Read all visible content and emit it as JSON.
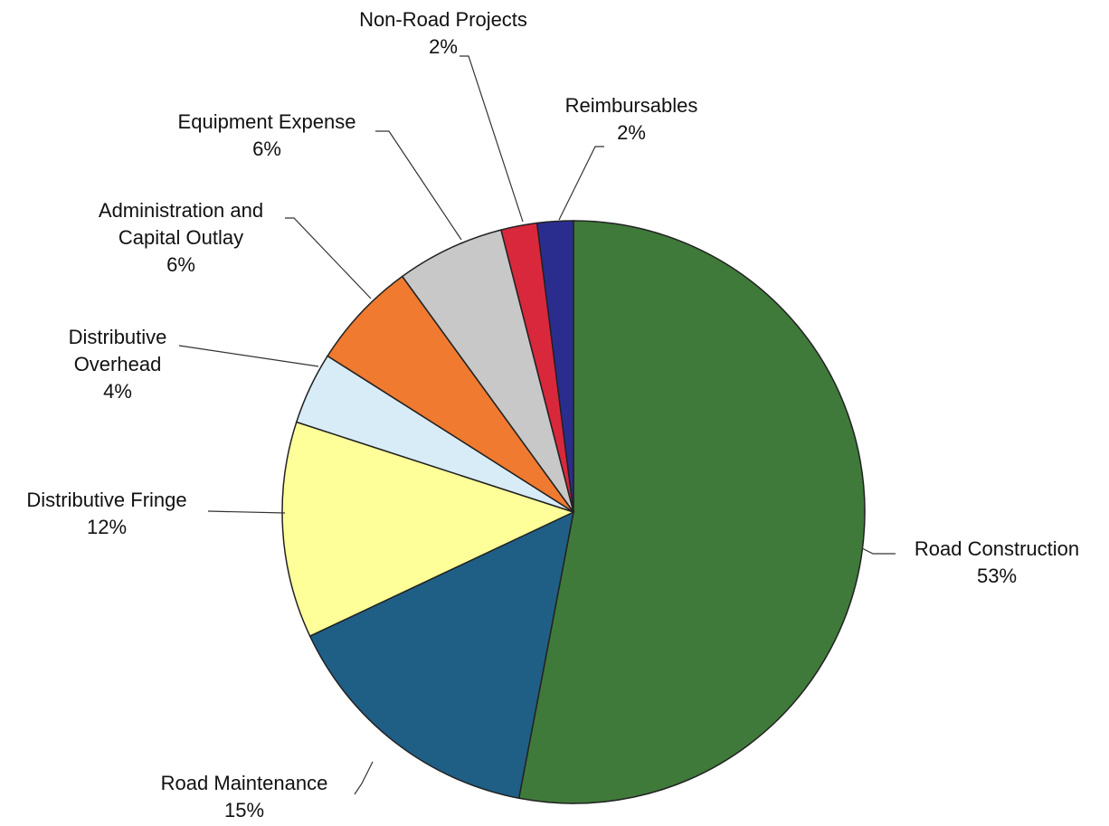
{
  "chart_data": {
    "type": "pie",
    "categories": [
      "Road Construction",
      "Road Maintenance",
      "Distributive Fringe",
      "Distributive Overhead",
      "Administration and Capital Outlay",
      "Equipment Expense",
      "Non-Road Projects",
      "Reimbursables"
    ],
    "values": [
      53,
      15,
      12,
      4,
      6,
      6,
      2,
      2
    ],
    "value_labels": [
      "53%",
      "15%",
      "12%",
      "4%",
      "6%",
      "6%",
      "2%",
      "2%"
    ],
    "colors": [
      "#3f7a3a",
      "#1f5f86",
      "#ffff99",
      "#d8ecf7",
      "#ef7a30",
      "#c8c8c8",
      "#d9283c",
      "#2b2d8e"
    ]
  }
}
